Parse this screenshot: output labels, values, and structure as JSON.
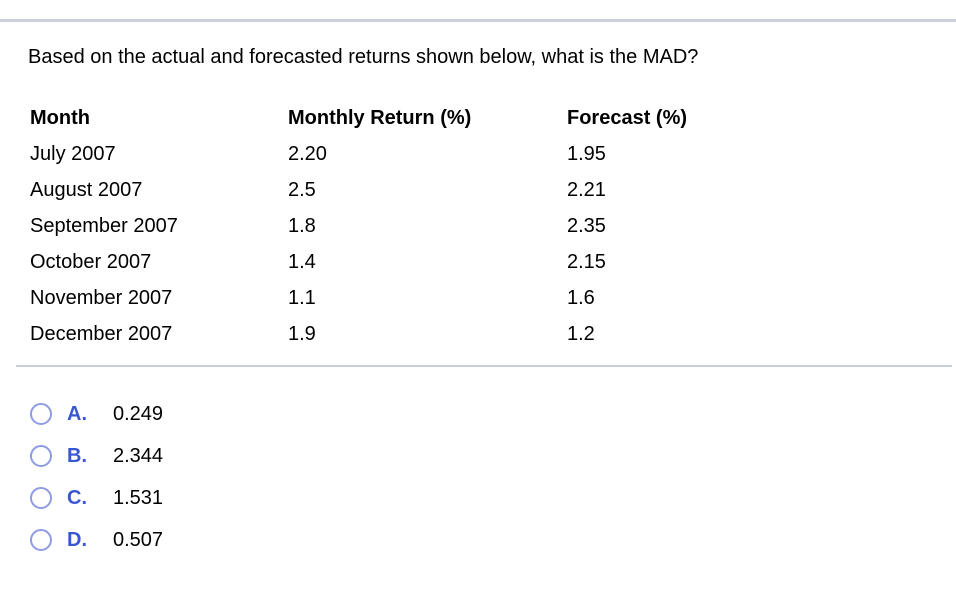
{
  "question": "Based on the actual and forecasted returns shown below, what is the MAD?",
  "table": {
    "headers": [
      "Month",
      "Monthly Return (%)",
      "Forecast (%)"
    ],
    "rows": [
      {
        "month": "July 2007",
        "return": "2.20",
        "forecast": "1.95"
      },
      {
        "month": "August 2007",
        "return": "2.5",
        "forecast": "2.21"
      },
      {
        "month": "September 2007",
        "return": "1.8",
        "forecast": "2.35"
      },
      {
        "month": "October 2007",
        "return": "1.4",
        "forecast": "2.15"
      },
      {
        "month": "November 2007",
        "return": "1.1",
        "forecast": "1.6"
      },
      {
        "month": "December 2007",
        "return": "1.9",
        "forecast": "1.2"
      }
    ]
  },
  "options": [
    {
      "letter": "A.",
      "value": "0.249"
    },
    {
      "letter": "B.",
      "value": "2.344"
    },
    {
      "letter": "C.",
      "value": "1.531"
    },
    {
      "letter": "D.",
      "value": "0.507"
    }
  ],
  "colors": {
    "divider": "#ccd0db",
    "option_letter_blue": "#3a57d3",
    "radio_border_blue": "#8e9ce3",
    "text": "#000000"
  }
}
